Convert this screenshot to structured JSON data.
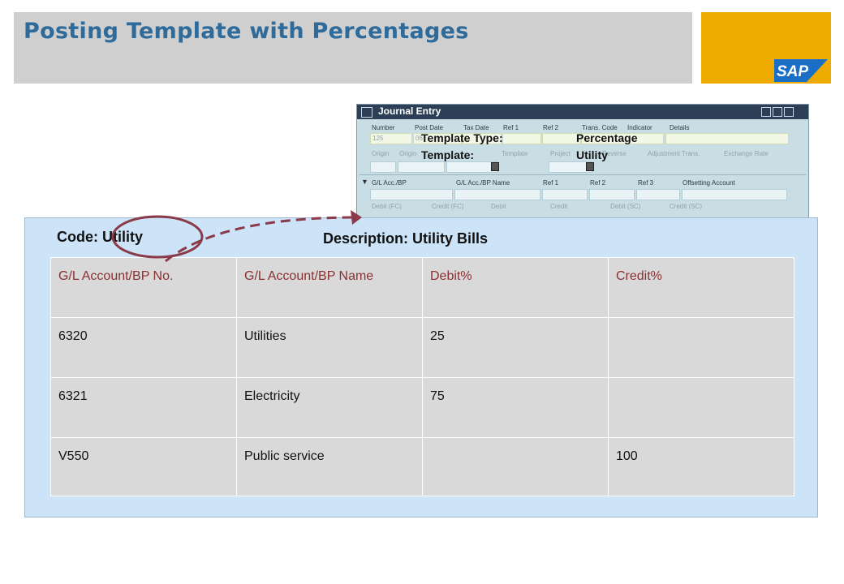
{
  "slide": {
    "title": "Posting Template with Percentages"
  },
  "brand": {
    "logo_text": "SAP",
    "accent_color": "#f0ab00",
    "title_color": "#2f6b9a"
  },
  "journal_entry": {
    "window_title": "Journal Entry",
    "header_fields": [
      "Number",
      "Post Date",
      "Tax Date",
      "Ref 1",
      "Ref 2",
      "Trans. Code",
      "Indicator",
      "Details"
    ],
    "row2_labels": [
      "Origin",
      "Origin",
      "Template",
      "Project",
      "Reverse",
      "Adjustment Trans.",
      "Exchange Rate"
    ],
    "number_value": "125",
    "date_value": "06",
    "template_type_label": "Template Type:",
    "template_type_value": "Percentage",
    "template_label": "Template:",
    "template_value": "Utility",
    "grid_header": [
      "G/L Acc./BP",
      "G/L Acc./BP Name",
      "Ref 1",
      "Ref 2",
      "Ref 3",
      "Offsetting Account"
    ],
    "grid_header2": [
      "Debit (FC)",
      "Credit (FC)",
      "Debit",
      "Credit",
      "Debit (SC)",
      "Credit (SC)"
    ]
  },
  "template_detail": {
    "code_label": "Code: Utility",
    "description_label": "Description: Utility Bills",
    "columns": [
      "G/L Account/BP No.",
      "G/L Account/BP Name",
      "Debit%",
      "Credit%"
    ],
    "rows": [
      {
        "account": "6320",
        "name": "Utilities",
        "debit": "25",
        "credit": ""
      },
      {
        "account": "6321",
        "name": "Electricity",
        "debit": "75",
        "credit": ""
      },
      {
        "account": "V550",
        "name": "Public service",
        "debit": "",
        "credit": "100"
      }
    ]
  },
  "annotation": {
    "circle_color": "#8b3a4a",
    "arrow_color": "#8b3a4a"
  }
}
